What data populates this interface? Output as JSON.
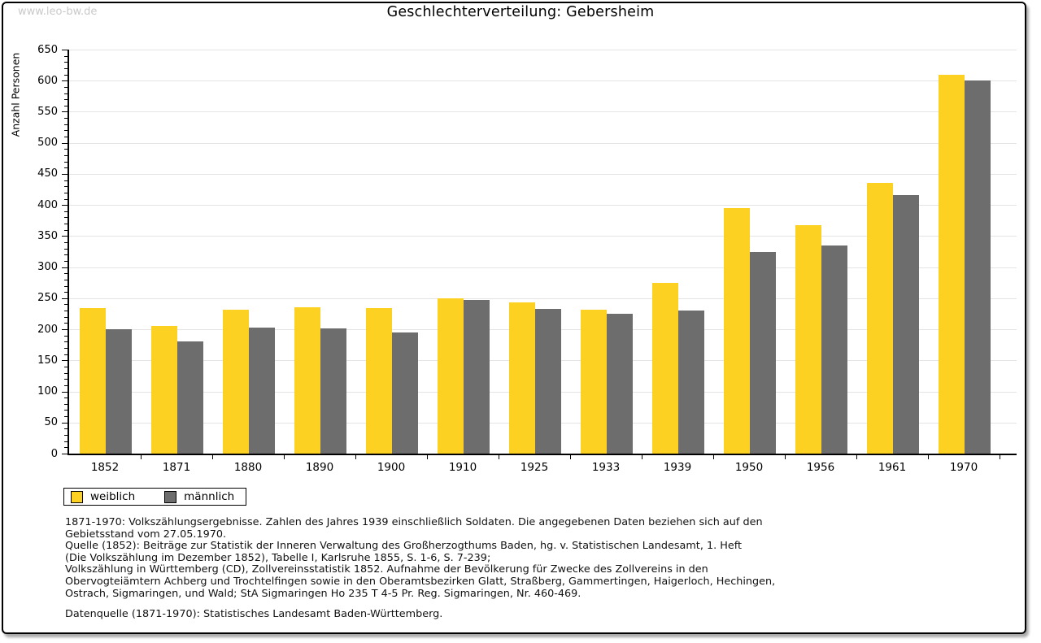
{
  "watermark": "www.leo-bw.de",
  "title": "Geschlechterverteilung: Gebersheim",
  "chart_data": {
    "type": "bar",
    "title": "Geschlechterverteilung: Gebersheim",
    "xlabel": "",
    "ylabel": "Anzahl Personen",
    "ylim": [
      0,
      650
    ],
    "ytick_step": 50,
    "yminortick_step": 10,
    "grid": true,
    "legend_position": "bottom-left",
    "categories": [
      "1852",
      "1871",
      "1880",
      "1890",
      "1900",
      "1910",
      "1925",
      "1933",
      "1939",
      "1950",
      "1956",
      "1961",
      "1970"
    ],
    "series": [
      {
        "name": "weiblich",
        "color": "#fcd122",
        "values": [
          234,
          205,
          231,
          235,
          234,
          250,
          243,
          232,
          275,
          395,
          367,
          435,
          610
        ]
      },
      {
        "name": "männlich",
        "color": "#6d6d6d",
        "values": [
          200,
          180,
          203,
          202,
          195,
          247,
          233,
          225,
          230,
          325,
          335,
          416,
          601
        ]
      }
    ]
  },
  "legend": {
    "items": [
      {
        "label": "weiblich",
        "color": "#fcd122"
      },
      {
        "label": "männlich",
        "color": "#6d6d6d"
      }
    ]
  },
  "footnotes": {
    "lines": [
      "1871-1970: Volkszählungsergebnisse. Zahlen des Jahres 1939 einschließlich Soldaten. Die angegebenen Daten beziehen sich auf den",
      "Gebietsstand vom 27.05.1970.",
      "Quelle (1852): Beiträge zur Statistik der Inneren Verwaltung des Großherzogthums Baden, hg. v. Statistischen Landesamt, 1. Heft",
      "(Die Volkszählung im Dezember 1852), Tabelle I, Karlsruhe 1855, S. 1-6, S. 7-239;",
      "Volkszählung in Württemberg (CD), Zollvereinsstatistik 1852. Aufnahme der Bevölkerung für Zwecke des Zollvereins in den",
      "Obervogteiämtern Achberg und Trochtelfingen sowie in den Oberamtsbezirken Glatt, Straßberg, Gammertingen, Haigerloch, Hechingen,",
      "Ostrach, Sigmaringen, und Wald; StA Sigmaringen Ho 235 T 4-5 Pr. Reg. Sigmaringen, Nr. 460-469."
    ]
  },
  "datasource": "Datenquelle (1871-1970): Statistisches Landesamt Baden-Württemberg."
}
